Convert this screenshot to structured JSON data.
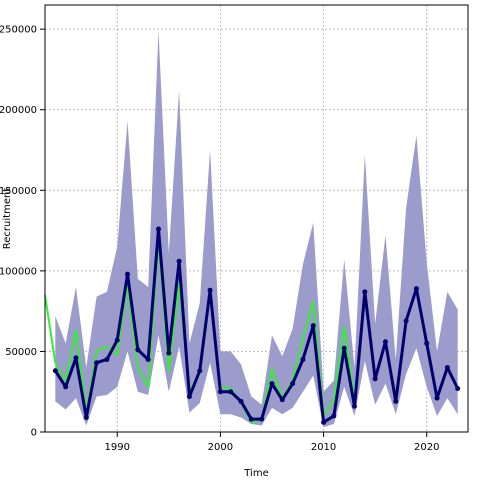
{
  "chart_data": {
    "type": "line",
    "title": "",
    "xlabel": "Time",
    "ylabel": "Recruitment",
    "xlim": [
      1983,
      2024
    ],
    "ylim": [
      0,
      265000
    ],
    "x_ticks": [
      1990,
      2000,
      2010,
      2020
    ],
    "y_ticks": [
      0,
      50000,
      100000,
      150000,
      200000,
      250000
    ],
    "y_tick_labels": [
      "0",
      "50000",
      "100000",
      "150000",
      "200000",
      "250000"
    ],
    "x_tick_labels": [
      "1990",
      "2000",
      "2010",
      "2020"
    ],
    "grid": true,
    "colors": {
      "band": "#9b9bcc",
      "estimate": "#00006e",
      "observed": "#33ee33",
      "grid": "#bbbbbb"
    },
    "series": [
      {
        "role": "confidence-band",
        "x": [
          1984,
          1985,
          1986,
          1987,
          1988,
          1989,
          1990,
          1991,
          1992,
          1993,
          1994,
          1995,
          1996,
          1997,
          1998,
          1999,
          2000,
          2001,
          2002,
          2003,
          2004,
          2005,
          2006,
          2007,
          2008,
          2009,
          2010,
          2011,
          2012,
          2013,
          2014,
          2015,
          2016,
          2017,
          2018,
          2019,
          2020,
          2021,
          2022,
          2023
        ],
        "lower": [
          19000,
          14000,
          21000,
          4000,
          22000,
          23000,
          28000,
          50000,
          25000,
          23000,
          60000,
          25000,
          53000,
          12000,
          18000,
          43000,
          11000,
          11000,
          9000,
          5000,
          4000,
          15000,
          11000,
          15000,
          25000,
          35000,
          3000,
          5000,
          28000,
          10000,
          44000,
          17000,
          30000,
          11000,
          36000,
          52000,
          28000,
          10000,
          21000,
          11000
        ],
        "upper": [
          72000,
          55000,
          90000,
          40000,
          84000,
          87000,
          115000,
          193000,
          95000,
          90000,
          249000,
          111000,
          212000,
          55000,
          80000,
          175000,
          50000,
          50000,
          42000,
          22000,
          17000,
          60000,
          47000,
          64000,
          104000,
          130000,
          25000,
          32000,
          107000,
          40000,
          172000,
          67000,
          122000,
          45000,
          139000,
          184000,
          105000,
          50000,
          87000,
          76000
        ]
      },
      {
        "role": "observed",
        "x": [
          1983,
          1984,
          1985,
          1986,
          1987,
          1988,
          1989,
          1990,
          1991,
          1992,
          1993,
          1994,
          1995,
          1996,
          1997,
          1998,
          1999,
          2000,
          2001,
          2002,
          2003,
          2004,
          2005,
          2006,
          2007,
          2008,
          2009,
          2010,
          2011,
          2012,
          2013
        ],
        "values": [
          85000,
          43000,
          32000,
          63000,
          12000,
          50000,
          53000,
          48000,
          92000,
          40000,
          28000,
          120000,
          38000,
          92000,
          26000,
          36000,
          85000,
          28000,
          27000,
          18000,
          6000,
          8000,
          39000,
          21000,
          32000,
          58000,
          81000,
          10000,
          20000,
          65000,
          20000
        ]
      },
      {
        "role": "estimate",
        "x": [
          1984,
          1985,
          1986,
          1987,
          1988,
          1989,
          1990,
          1991,
          1992,
          1993,
          1994,
          1995,
          1996,
          1997,
          1998,
          1999,
          2000,
          2001,
          2002,
          2003,
          2004,
          2005,
          2006,
          2007,
          2008,
          2009,
          2010,
          2011,
          2012,
          2013,
          2014,
          2015,
          2016,
          2017,
          2018,
          2019,
          2020,
          2021,
          2022,
          2023
        ],
        "values": [
          38000,
          28000,
          46000,
          9000,
          43000,
          45000,
          57000,
          98000,
          51000,
          45000,
          126000,
          49000,
          106000,
          22000,
          38000,
          88000,
          25000,
          25000,
          19000,
          8000,
          8000,
          30000,
          20000,
          30000,
          45000,
          66000,
          6000,
          10000,
          52000,
          16000,
          87000,
          33000,
          56000,
          19000,
          69000,
          89000,
          55000,
          21000,
          40000,
          27000
        ]
      }
    ]
  }
}
